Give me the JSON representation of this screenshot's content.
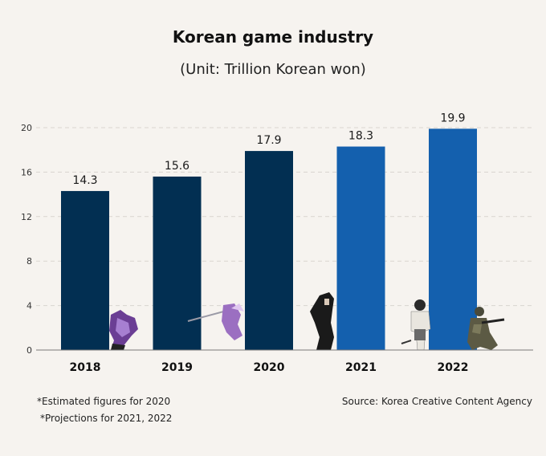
{
  "chart_data": {
    "type": "bar",
    "title": "Korean game industry",
    "subtitle": "(Unit: Trillion Korean won)",
    "categories": [
      "2018",
      "2019",
      "2020",
      "2021",
      "2022"
    ],
    "values": [
      14.3,
      15.6,
      17.9,
      18.3,
      19.9
    ],
    "value_labels": [
      "14.3",
      "15.6",
      "17.9",
      "18.3",
      "19.9"
    ],
    "yticks": [
      0,
      4,
      8,
      12,
      16,
      20
    ],
    "ylim": [
      0,
      20
    ],
    "grid": true,
    "colors": {
      "actual": "#022f52",
      "projected": "#1460ae",
      "grid": "#d9d5cf",
      "axis": "#7a7a7a"
    },
    "bar_colors": [
      "actual",
      "actual",
      "actual",
      "projected",
      "projected"
    ]
  },
  "footnotes": {
    "estimated": "*Estimated figures for 2020",
    "projections": "*Projections for 2021, 2022",
    "source": "Source: Korea Creative Content Agency"
  }
}
